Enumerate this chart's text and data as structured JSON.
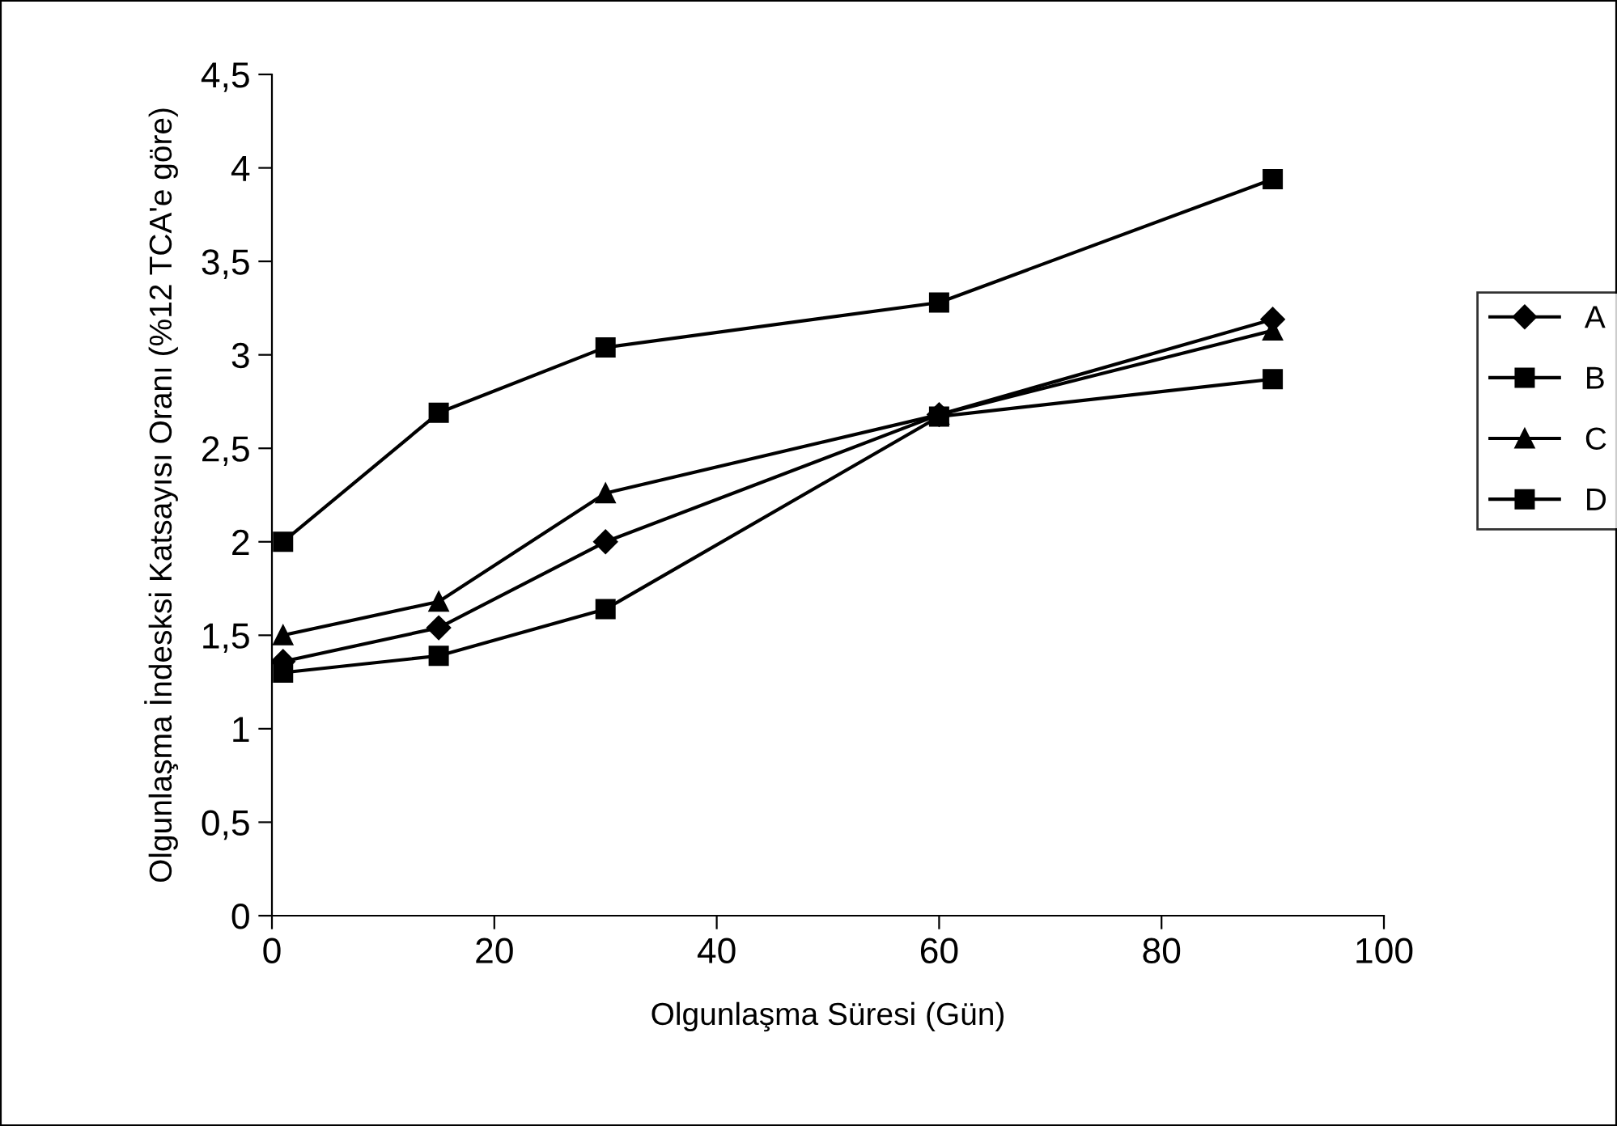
{
  "chart_data": {
    "type": "line",
    "xlabel": "Olgunlaşma Süresi (Gün)",
    "ylabel": "Olgunlaşma İndesksi Katsayısı Oranı (%12 TCA'e göre)",
    "x": [
      1,
      15,
      30,
      60,
      90
    ],
    "series": [
      {
        "name": "A",
        "color": "#000000",
        "marker": "diamond",
        "values": [
          1.36,
          1.54,
          2.0,
          2.68,
          3.19
        ]
      },
      {
        "name": "B",
        "color": "#000000",
        "marker": "square",
        "values": [
          1.3,
          1.39,
          1.64,
          2.67,
          2.87
        ]
      },
      {
        "name": "C",
        "color": "#000000",
        "marker": "triangle",
        "values": [
          1.5,
          1.68,
          2.26,
          2.68,
          3.13
        ]
      },
      {
        "name": "D",
        "color": "#000000",
        "marker": "square",
        "values": [
          2.0,
          2.69,
          3.04,
          3.28,
          3.94
        ]
      }
    ],
    "xlim": [
      0,
      100
    ],
    "xticks": [
      0,
      20,
      40,
      60,
      80,
      100
    ],
    "ylim": [
      0,
      4.5
    ],
    "yticks": [
      0,
      {
        "value": 0.5,
        "label": "0,5"
      },
      1,
      {
        "value": 1.5,
        "label": "1,5"
      },
      2,
      {
        "value": 2.5,
        "label": "2,5"
      },
      3,
      {
        "value": 3.5,
        "label": "3,5"
      },
      4,
      {
        "value": 4.5,
        "label": "4,5"
      }
    ],
    "grid": false,
    "legend": "right",
    "line_style": "solid"
  }
}
